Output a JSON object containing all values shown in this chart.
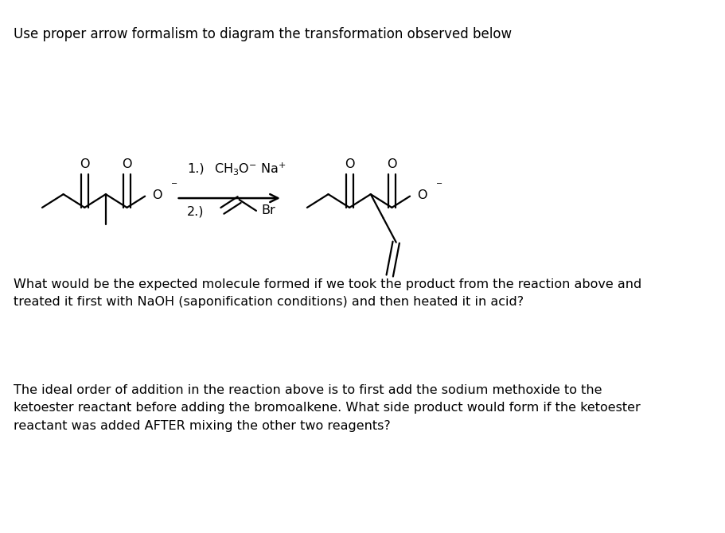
{
  "title": "Use proper arrow formalism to diagram the transformation observed below",
  "title_fontsize": 12,
  "bg_color": "#ffffff",
  "text_color": "#000000",
  "question1": "What would be the expected molecule formed if we took the product from the reaction above and\ntreated it first with NaOH (saponification conditions) and then heated it in acid?",
  "question2": "The ideal order of addition in the reaction above is to first add the sodium methoxide to the\nketoester reactant before adding the bromoalkene. What side product would form if the ketoester\nreactant was added AFTER mixing the other two reagents?",
  "fontsize_text": 11.5,
  "lw": 1.6
}
